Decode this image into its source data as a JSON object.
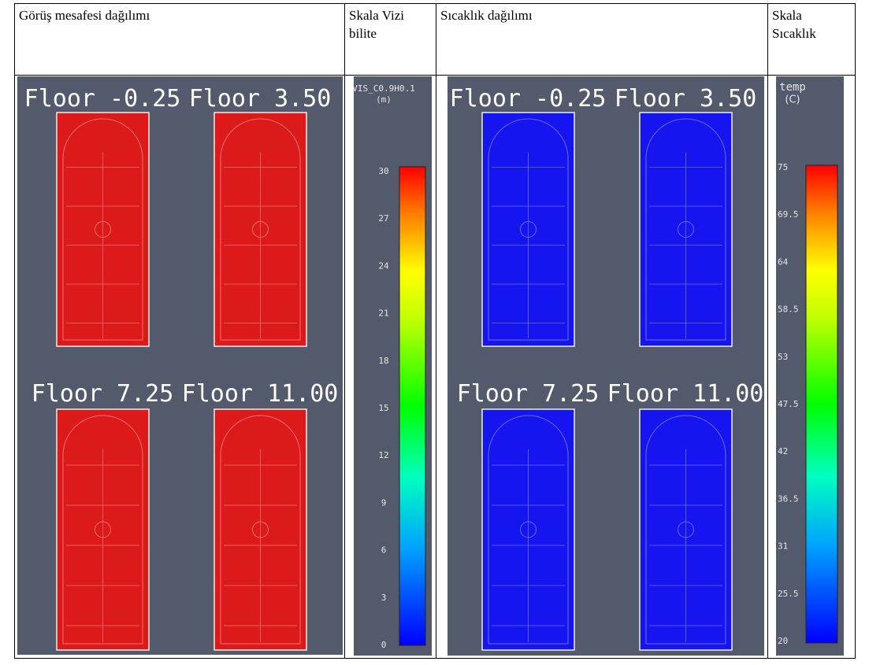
{
  "header": {
    "cells": [
      "Görüş mesafesi dağılımı",
      "Skala Vizibilite",
      "Sıcaklık dağılımı",
      "Skala Sıcaklık"
    ]
  },
  "visibility": {
    "floors": [
      "Floor -0.25",
      "Floor 3.50",
      "Floor 7.25",
      "Floor 11.00"
    ],
    "scale": {
      "title": "VIS_C0.9H0.1",
      "unit": "(m)",
      "ticks": [
        0,
        3,
        6,
        9,
        12,
        15,
        18,
        21,
        24,
        27,
        30
      ]
    }
  },
  "temperature": {
    "floors": [
      "Floor -0.25",
      "Floor 3.50",
      "Floor 7.25",
      "Floor 11.00"
    ],
    "scale": {
      "title": "temp",
      "unit": "(C)",
      "ticks": [
        20,
        25.5,
        31,
        36.5,
        42,
        47.5,
        53,
        58.5,
        64,
        69.5,
        75
      ]
    }
  }
}
